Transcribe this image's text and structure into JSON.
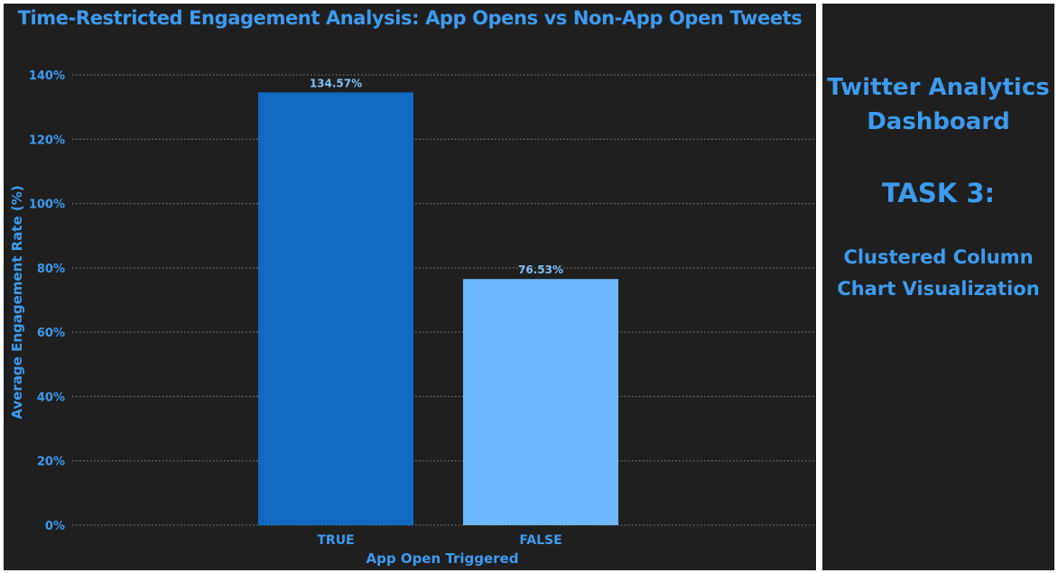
{
  "chart_data": {
    "type": "bar",
    "title": "Time-Restricted Engagement Analysis: App Opens vs Non-App Open Tweets",
    "xlabel": "App Open Triggered",
    "ylabel": "Average Engagement Rate (%)",
    "categories": [
      "TRUE",
      "FALSE"
    ],
    "values": [
      134.57,
      76.53
    ],
    "data_labels": [
      "134.57%",
      "76.53%"
    ],
    "ylim": [
      0,
      140
    ],
    "yticks": [
      0,
      20,
      40,
      60,
      80,
      100,
      120,
      140
    ],
    "ytick_labels": [
      "0%",
      "20%",
      "40%",
      "60%",
      "80%",
      "100%",
      "120%",
      "140%"
    ],
    "grid": true,
    "bar_colors": [
      "#1169c2",
      "#6db8fc"
    ],
    "text_color": "#3d9bf0",
    "label_color": "#7ec0f8",
    "background": "#1f1f1f"
  },
  "side_panel": {
    "title": "Twitter Analytics Dashboard",
    "task": "TASK 3:",
    "subtitle": "Clustered Column Chart Visualization"
  }
}
